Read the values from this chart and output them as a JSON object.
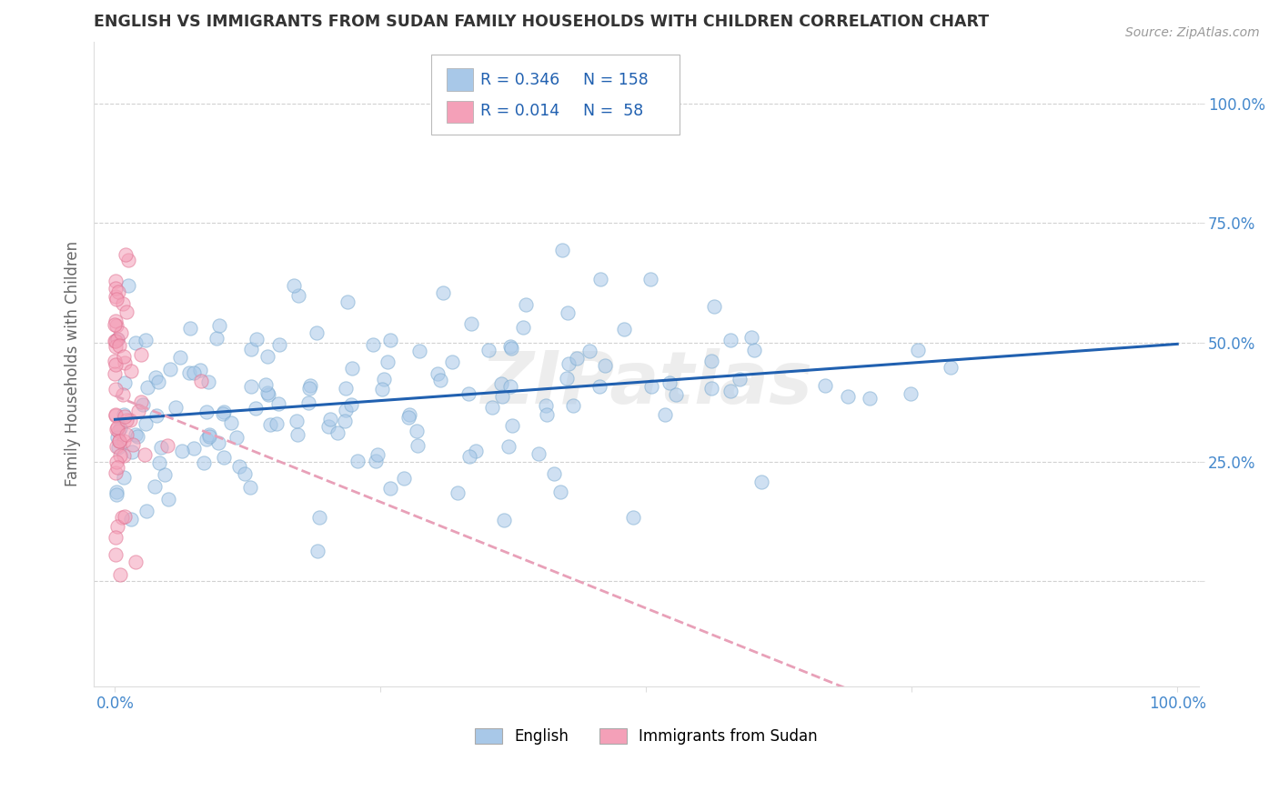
{
  "title": "ENGLISH VS IMMIGRANTS FROM SUDAN FAMILY HOUSEHOLDS WITH CHILDREN CORRELATION CHART",
  "source": "Source: ZipAtlas.com",
  "ylabel": "Family Households with Children",
  "english_color": "#A8C8E8",
  "english_edge_color": "#7AAAD0",
  "sudan_color": "#F4A0B8",
  "sudan_edge_color": "#E07090",
  "english_line_color": "#2060B0",
  "sudan_line_color": "#E8A0B8",
  "legend_R_english": "0.346",
  "legend_N_english": "158",
  "legend_R_sudan": "0.014",
  "legend_N_sudan": "58",
  "watermark": "ZIPatlas",
  "background_color": "#ffffff",
  "grid_color": "#cccccc",
  "title_color": "#333333",
  "axis_label_color": "#666666",
  "tick_color": "#4488CC",
  "english_n": 158,
  "sudan_n": 58,
  "english_R": 0.346,
  "sudan_R": 0.014,
  "english_seed": 42,
  "sudan_seed": 99
}
